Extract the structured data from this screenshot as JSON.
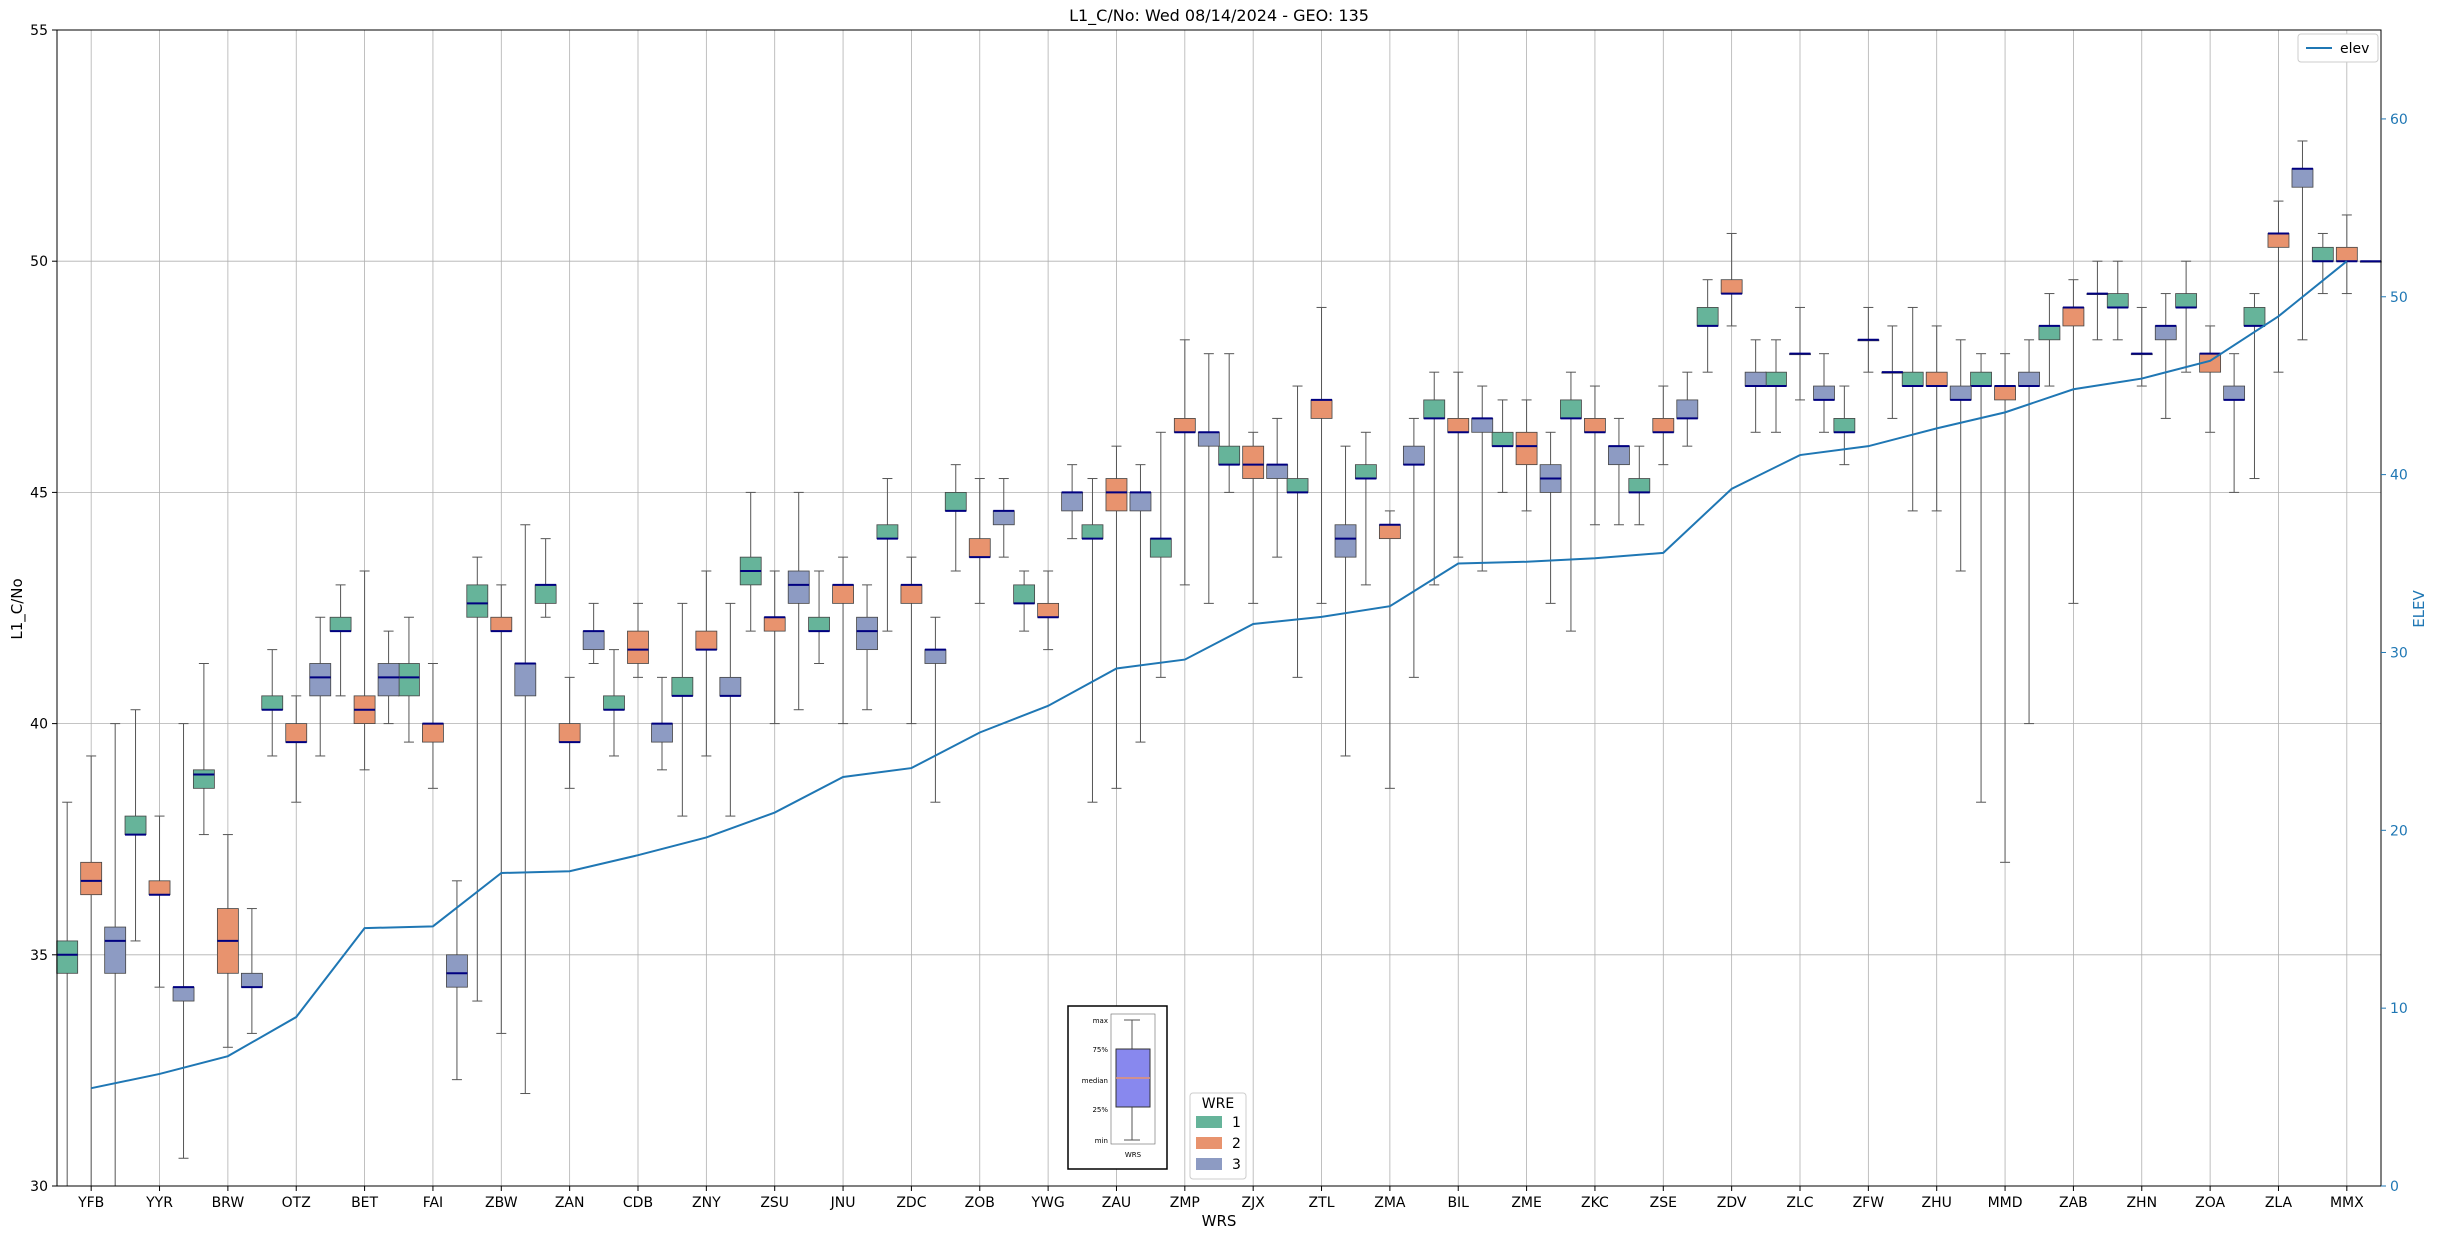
{
  "chart_data": {
    "type": "boxplot",
    "title": "L1_C/No: Wed 08/14/2024 - GEO: 135",
    "xlabel": "WRS",
    "ylabel": "L1_C/No",
    "y2label": "ELEV",
    "ylim": [
      30,
      55
    ],
    "y2lim": [
      0,
      65
    ],
    "yticks": [
      30,
      35,
      40,
      45,
      50,
      55
    ],
    "y2ticks": [
      0,
      10,
      20,
      30,
      40,
      50,
      60
    ],
    "grid": true,
    "colors": {
      "1": "#66b49a",
      "2": "#e8936e",
      "3": "#8d9bc3",
      "median": "#000080",
      "elev": "#1f77b4"
    },
    "categories": [
      "YFB",
      "YYR",
      "BRW",
      "OTZ",
      "BET",
      "FAI",
      "ZBW",
      "ZAN",
      "CDB",
      "ZNY",
      "ZSU",
      "JNU",
      "ZDC",
      "ZOB",
      "YWG",
      "ZAU",
      "ZMP",
      "ZJX",
      "ZTL",
      "ZMA",
      "BIL",
      "ZME",
      "ZKC",
      "ZSE",
      "ZDV",
      "ZLC",
      "ZFW",
      "ZHU",
      "MMD",
      "ZAB",
      "ZHN",
      "ZOA",
      "ZLA",
      "MMX"
    ],
    "wre_legend": {
      "title": "WRE",
      "labels": [
        "1",
        "2",
        "3"
      ],
      "placement": "lower-center"
    },
    "elev_legend": {
      "label": "elev",
      "placement": "upper-right"
    },
    "key_box": {
      "labels": [
        "max",
        "75%",
        "median",
        "25%",
        "min"
      ],
      "xlabel": "WRS"
    },
    "series": [
      {
        "name": "1",
        "boxes": [
          [
            30.0,
            34.6,
            35.0,
            35.3,
            38.3
          ],
          [
            35.3,
            37.6,
            37.6,
            38.0,
            40.3
          ],
          [
            37.6,
            38.6,
            38.9,
            39.0,
            41.3
          ],
          [
            39.3,
            40.3,
            40.3,
            40.6,
            41.6
          ],
          [
            40.6,
            42.0,
            42.0,
            42.3,
            43.0
          ],
          [
            39.6,
            40.6,
            41.0,
            41.3,
            42.3
          ],
          [
            34.0,
            42.3,
            42.6,
            43.0,
            43.6
          ],
          [
            42.3,
            42.6,
            43.0,
            43.0,
            44.0
          ],
          [
            39.3,
            40.3,
            40.3,
            40.6,
            41.6
          ],
          [
            38.0,
            40.6,
            40.6,
            41.0,
            42.6
          ],
          [
            42.0,
            43.0,
            43.3,
            43.6,
            45.0
          ],
          [
            41.3,
            42.0,
            42.0,
            42.3,
            43.3
          ],
          [
            42.0,
            44.0,
            44.0,
            44.3,
            45.3
          ],
          [
            43.3,
            44.6,
            44.6,
            45.0,
            45.6
          ],
          [
            42.0,
            42.6,
            42.6,
            43.0,
            43.3
          ],
          [
            38.3,
            44.0,
            44.0,
            44.3,
            45.3
          ],
          [
            41.0,
            43.6,
            44.0,
            44.0,
            46.3
          ],
          [
            45.0,
            45.6,
            45.6,
            46.0,
            48.0
          ],
          [
            41.0,
            45.0,
            45.0,
            45.3,
            47.3
          ],
          [
            43.0,
            45.3,
            45.3,
            45.6,
            46.3
          ],
          [
            43.0,
            46.6,
            46.6,
            47.0,
            47.6
          ],
          [
            45.0,
            46.0,
            46.0,
            46.3,
            47.0
          ],
          [
            42.0,
            46.6,
            46.6,
            47.0,
            47.6
          ],
          [
            44.3,
            45.0,
            45.0,
            45.3,
            46.0
          ],
          [
            47.6,
            48.6,
            48.6,
            49.0,
            49.6
          ],
          [
            46.3,
            47.3,
            47.3,
            47.6,
            48.3
          ],
          [
            45.6,
            46.3,
            46.3,
            46.6,
            47.3
          ],
          [
            44.6,
            47.3,
            47.3,
            47.6,
            49.0
          ],
          [
            38.3,
            47.3,
            47.3,
            47.6,
            48.0
          ],
          [
            47.3,
            48.3,
            48.6,
            48.6,
            49.3
          ],
          [
            48.3,
            49.0,
            49.0,
            49.3,
            50.0
          ],
          [
            47.6,
            49.0,
            49.0,
            49.3,
            50.0
          ],
          [
            45.3,
            48.6,
            48.6,
            49.0,
            49.3
          ],
          [
            49.3,
            50.0,
            50.0,
            50.3,
            50.6
          ]
        ]
      },
      {
        "name": "2",
        "boxes": [
          [
            30.0,
            36.3,
            36.6,
            37.0,
            39.3
          ],
          [
            34.3,
            36.3,
            36.3,
            36.6,
            38.0
          ],
          [
            33.0,
            34.6,
            35.3,
            36.0,
            37.6
          ],
          [
            38.3,
            39.6,
            39.6,
            40.0,
            40.6
          ],
          [
            39.0,
            40.0,
            40.3,
            40.6,
            43.3
          ],
          [
            38.6,
            39.6,
            40.0,
            40.0,
            41.3
          ],
          [
            33.3,
            42.0,
            42.0,
            42.3,
            43.0
          ],
          [
            38.6,
            39.6,
            39.6,
            40.0,
            41.0
          ],
          [
            41.0,
            41.3,
            41.6,
            42.0,
            42.6
          ],
          [
            39.3,
            41.6,
            41.6,
            42.0,
            43.3
          ],
          [
            40.0,
            42.0,
            42.3,
            42.3,
            43.3
          ],
          [
            40.0,
            42.6,
            43.0,
            43.0,
            43.6
          ],
          [
            40.0,
            42.6,
            43.0,
            43.0,
            43.6
          ],
          [
            42.6,
            43.6,
            43.6,
            44.0,
            45.3
          ],
          [
            41.6,
            42.3,
            42.3,
            42.6,
            43.3
          ],
          [
            38.6,
            44.6,
            45.0,
            45.3,
            46.0
          ],
          [
            43.0,
            46.3,
            46.3,
            46.6,
            48.3
          ],
          [
            42.6,
            45.3,
            45.6,
            46.0,
            46.3
          ],
          [
            42.6,
            46.6,
            47.0,
            47.0,
            49.0
          ],
          [
            38.6,
            44.0,
            44.3,
            44.3,
            44.6
          ],
          [
            43.6,
            46.3,
            46.3,
            46.6,
            47.6
          ],
          [
            44.6,
            45.6,
            46.0,
            46.3,
            47.0
          ],
          [
            44.3,
            46.3,
            46.3,
            46.6,
            47.3
          ],
          [
            45.6,
            46.3,
            46.3,
            46.6,
            47.3
          ],
          [
            48.6,
            49.3,
            49.3,
            49.6,
            50.6
          ],
          [
            47.0,
            48.0,
            48.0,
            48.0,
            49.0
          ],
          [
            47.6,
            48.3,
            48.3,
            48.3,
            49.0
          ],
          [
            44.6,
            47.3,
            47.3,
            47.6,
            48.6
          ],
          [
            37.0,
            47.0,
            47.3,
            47.3,
            48.0
          ],
          [
            42.6,
            48.6,
            49.0,
            49.0,
            49.6
          ],
          [
            47.3,
            48.0,
            48.0,
            48.0,
            49.0
          ],
          [
            46.3,
            47.6,
            48.0,
            48.0,
            48.6
          ],
          [
            47.6,
            50.3,
            50.6,
            50.6,
            51.3
          ],
          [
            49.3,
            50.0,
            50.0,
            50.3,
            51.0
          ]
        ]
      },
      {
        "name": "3",
        "boxes": [
          [
            30.0,
            34.6,
            35.3,
            35.6,
            40.0
          ],
          [
            30.6,
            34.0,
            34.3,
            34.3,
            40.0
          ],
          [
            33.3,
            34.3,
            34.3,
            34.6,
            36.0
          ],
          [
            39.3,
            40.6,
            41.0,
            41.3,
            42.3
          ],
          [
            40.0,
            40.6,
            41.0,
            41.3,
            42.0
          ],
          [
            32.3,
            34.3,
            34.6,
            35.0,
            36.6
          ],
          [
            32.0,
            40.6,
            41.3,
            41.3,
            44.3
          ],
          [
            41.3,
            41.6,
            42.0,
            42.0,
            42.6
          ],
          [
            39.0,
            39.6,
            40.0,
            40.0,
            41.0
          ],
          [
            38.0,
            40.6,
            40.6,
            41.0,
            42.6
          ],
          [
            40.3,
            42.6,
            43.0,
            43.3,
            45.0
          ],
          [
            40.3,
            41.6,
            42.0,
            42.3,
            43.0
          ],
          [
            38.3,
            41.3,
            41.6,
            41.6,
            42.3
          ],
          [
            43.6,
            44.3,
            44.6,
            44.6,
            45.3
          ],
          [
            44.0,
            44.6,
            45.0,
            45.0,
            45.6
          ],
          [
            39.6,
            44.6,
            45.0,
            45.0,
            45.6
          ],
          [
            42.6,
            46.0,
            46.3,
            46.3,
            48.0
          ],
          [
            43.6,
            45.3,
            45.6,
            45.6,
            46.6
          ],
          [
            39.3,
            43.6,
            44.0,
            44.3,
            46.0
          ],
          [
            41.0,
            45.6,
            45.6,
            46.0,
            46.6
          ],
          [
            43.3,
            46.3,
            46.6,
            46.6,
            47.3
          ],
          [
            42.6,
            45.0,
            45.3,
            45.6,
            46.3
          ],
          [
            44.3,
            45.6,
            46.0,
            46.0,
            46.6
          ],
          [
            46.0,
            46.6,
            46.6,
            47.0,
            47.6
          ],
          [
            46.3,
            47.3,
            47.3,
            47.6,
            48.3
          ],
          [
            46.3,
            47.0,
            47.0,
            47.3,
            48.0
          ],
          [
            46.6,
            47.6,
            47.6,
            47.6,
            48.6
          ],
          [
            43.3,
            47.0,
            47.0,
            47.3,
            48.3
          ],
          [
            40.0,
            47.3,
            47.3,
            47.6,
            48.3
          ],
          [
            48.3,
            49.3,
            49.3,
            49.3,
            50.0
          ],
          [
            46.6,
            48.3,
            48.6,
            48.6,
            49.3
          ],
          [
            45.0,
            47.0,
            47.0,
            47.3,
            48.0
          ],
          [
            48.3,
            51.6,
            52.0,
            52.0,
            52.6
          ],
          [
            50.0,
            50.0,
            50.0,
            50.0,
            50.0
          ]
        ]
      }
    ],
    "elev": [
      5.5,
      6.3,
      7.3,
      9.5,
      14.5,
      14.6,
      17.6,
      17.7,
      18.6,
      19.6,
      21.0,
      23.0,
      23.5,
      25.5,
      27.0,
      29.1,
      29.6,
      31.6,
      32.0,
      32.6,
      35.0,
      35.1,
      35.3,
      35.6,
      39.2,
      41.1,
      41.6,
      42.6,
      43.5,
      44.8,
      45.4,
      46.4,
      48.9,
      52.0
    ]
  }
}
